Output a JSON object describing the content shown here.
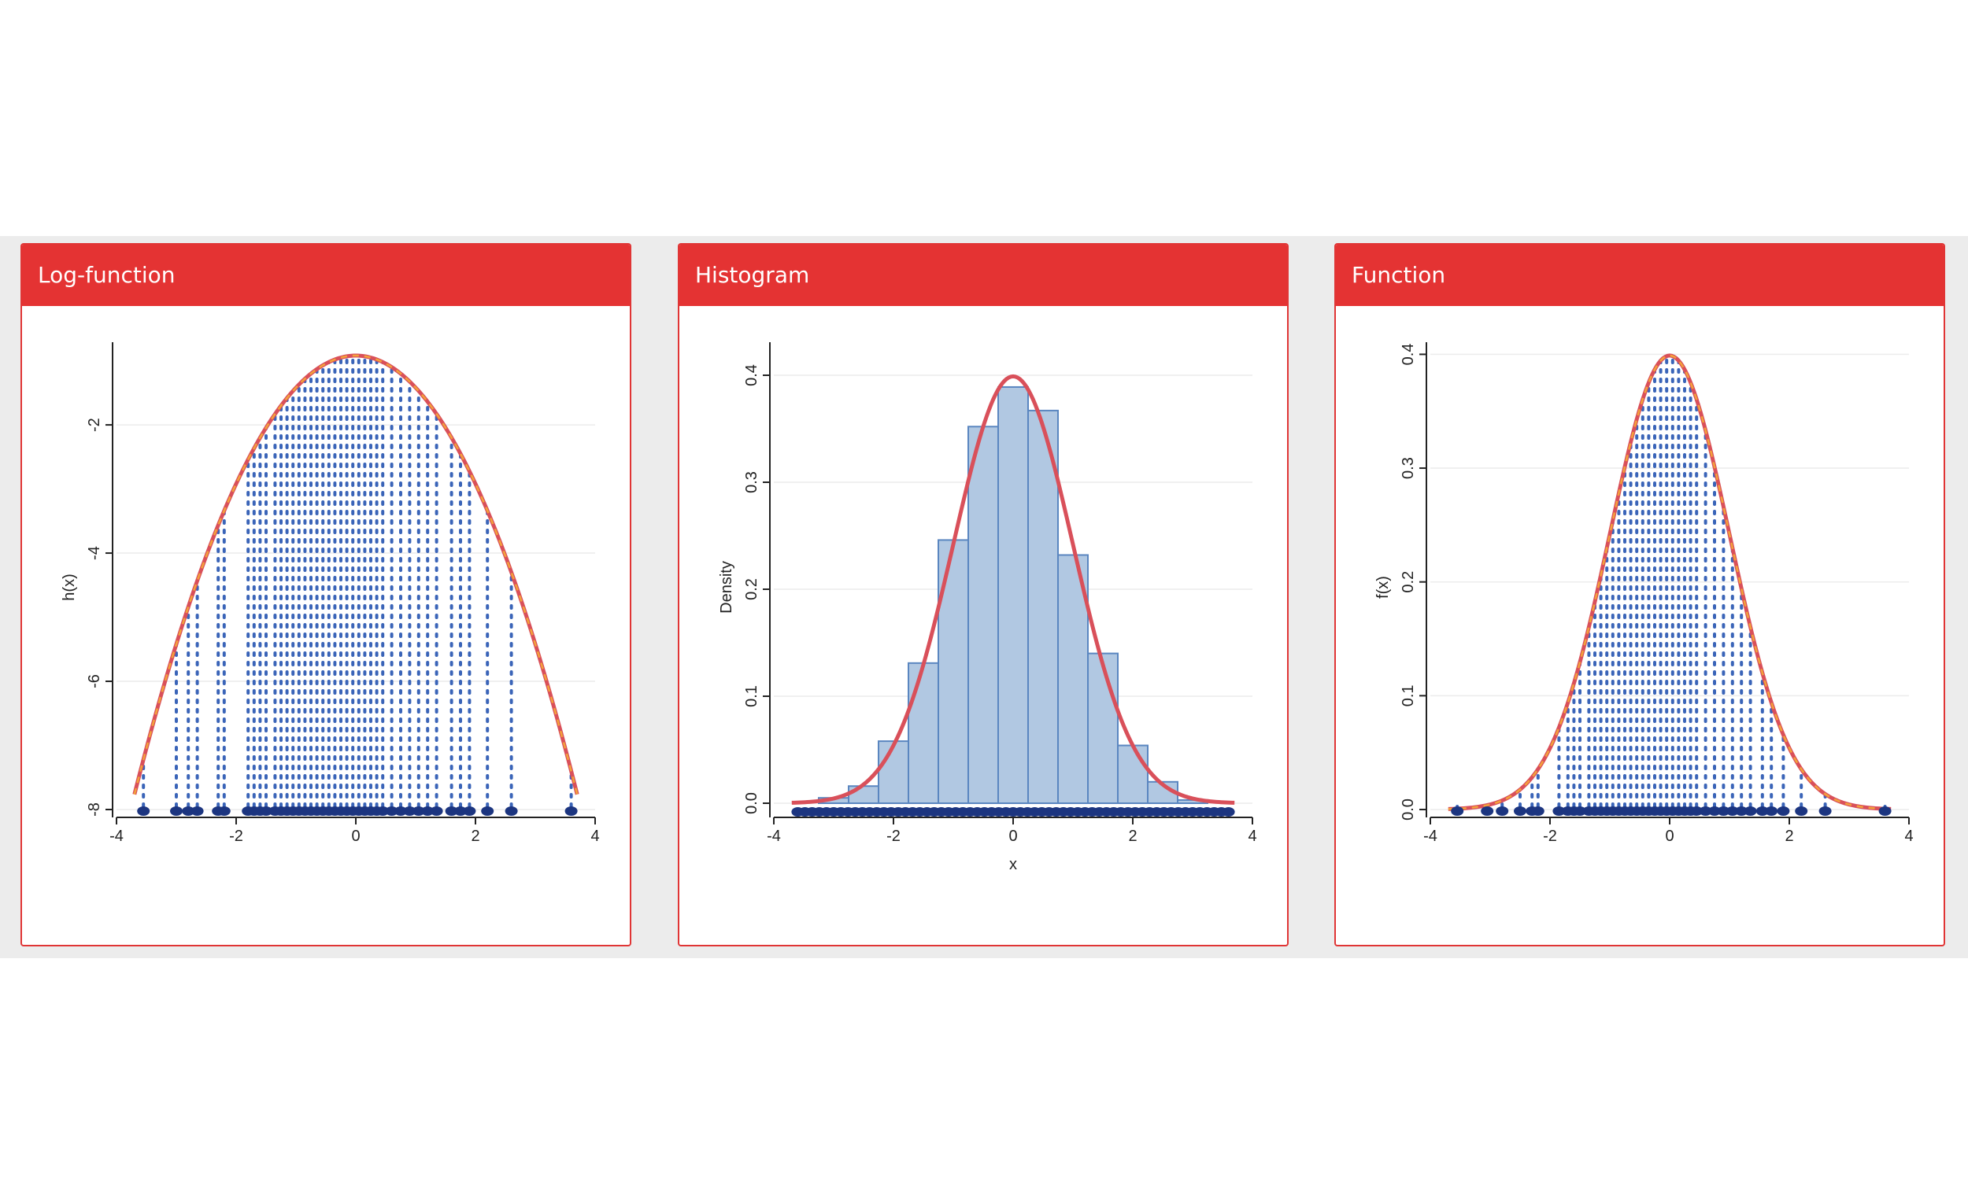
{
  "colors": {
    "panel_header": "#e43333",
    "curve": "#d9505a",
    "dash_orange": "#f3a23a",
    "points_blue": "#3a64b8",
    "rug_navy": "#1c3580",
    "bar_fill": "#b1c8e2",
    "bar_stroke": "#5a86c0"
  },
  "panels": [
    {
      "title": "Log-function",
      "chart_data": {
        "type": "line",
        "function": "h(x) = log f(x), standard normal log-density",
        "ylabel": "h(x)",
        "xlabel": "",
        "xlim": [
          -4,
          4
        ],
        "ylim": [
          -8,
          -1
        ],
        "x_ticks": [
          "-4",
          "-2",
          "0",
          "2",
          "4"
        ],
        "y_ticks": [
          "-8",
          "-6",
          "-4",
          "-2"
        ],
        "curve_x_range": [
          -3.7,
          3.7
        ],
        "sample_x": [
          -3.55,
          -3.0,
          -2.8,
          -2.65,
          -2.3,
          -2.2,
          -1.8,
          -1.7,
          -1.6,
          -1.5,
          -1.35,
          -1.25,
          -1.15,
          -1.05,
          -0.95,
          -0.85,
          -0.75,
          -0.65,
          -0.55,
          -0.45,
          -0.35,
          -0.25,
          -0.15,
          -0.05,
          0.05,
          0.15,
          0.25,
          0.35,
          0.45,
          0.6,
          0.75,
          0.9,
          1.05,
          1.2,
          1.35,
          1.6,
          1.75,
          1.9,
          2.2,
          2.6,
          3.6
        ]
      }
    },
    {
      "title": "Histogram",
      "chart_data": {
        "type": "bar",
        "xlabel": "x",
        "ylabel": "Density",
        "xlim": [
          -4,
          4
        ],
        "ylim": [
          0,
          0.4
        ],
        "x_ticks": [
          "-4",
          "-2",
          "0",
          "2",
          "4"
        ],
        "y_ticks": [
          "0.0",
          "0.1",
          "0.2",
          "0.3",
          "0.4"
        ],
        "bin_edges": [
          -3.25,
          -2.75,
          -2.25,
          -1.75,
          -1.25,
          -0.75,
          -0.25,
          0.25,
          0.75,
          1.25,
          1.75,
          2.25,
          2.75,
          3.25
        ],
        "values": [
          0.005,
          0.016,
          0.058,
          0.131,
          0.246,
          0.352,
          0.389,
          0.367,
          0.232,
          0.14,
          0.054,
          0.02,
          0.003
        ],
        "density_curve": "standard normal density, x from -3.7 to 3.7",
        "rug_range": [
          -3.6,
          3.6
        ]
      }
    },
    {
      "title": "Function",
      "chart_data": {
        "type": "line",
        "function": "f(x), standard normal density",
        "ylabel": "f(x)",
        "xlabel": "",
        "xlim": [
          -4,
          4
        ],
        "ylim": [
          0,
          0.4
        ],
        "x_ticks": [
          "-4",
          "-2",
          "0",
          "2",
          "4"
        ],
        "y_ticks": [
          "0.0",
          "0.1",
          "0.2",
          "0.3",
          "0.4"
        ],
        "curve_x_range": [
          -3.7,
          3.7
        ],
        "sample_x": [
          -3.55,
          -3.05,
          -2.8,
          -2.5,
          -2.3,
          -2.2,
          -1.85,
          -1.7,
          -1.6,
          -1.5,
          -1.35,
          -1.25,
          -1.15,
          -1.05,
          -0.95,
          -0.85,
          -0.75,
          -0.65,
          -0.55,
          -0.45,
          -0.35,
          -0.25,
          -0.15,
          -0.05,
          0.05,
          0.15,
          0.25,
          0.35,
          0.45,
          0.6,
          0.75,
          0.9,
          1.05,
          1.2,
          1.35,
          1.55,
          1.7,
          1.9,
          2.2,
          2.6,
          3.6
        ]
      }
    }
  ]
}
